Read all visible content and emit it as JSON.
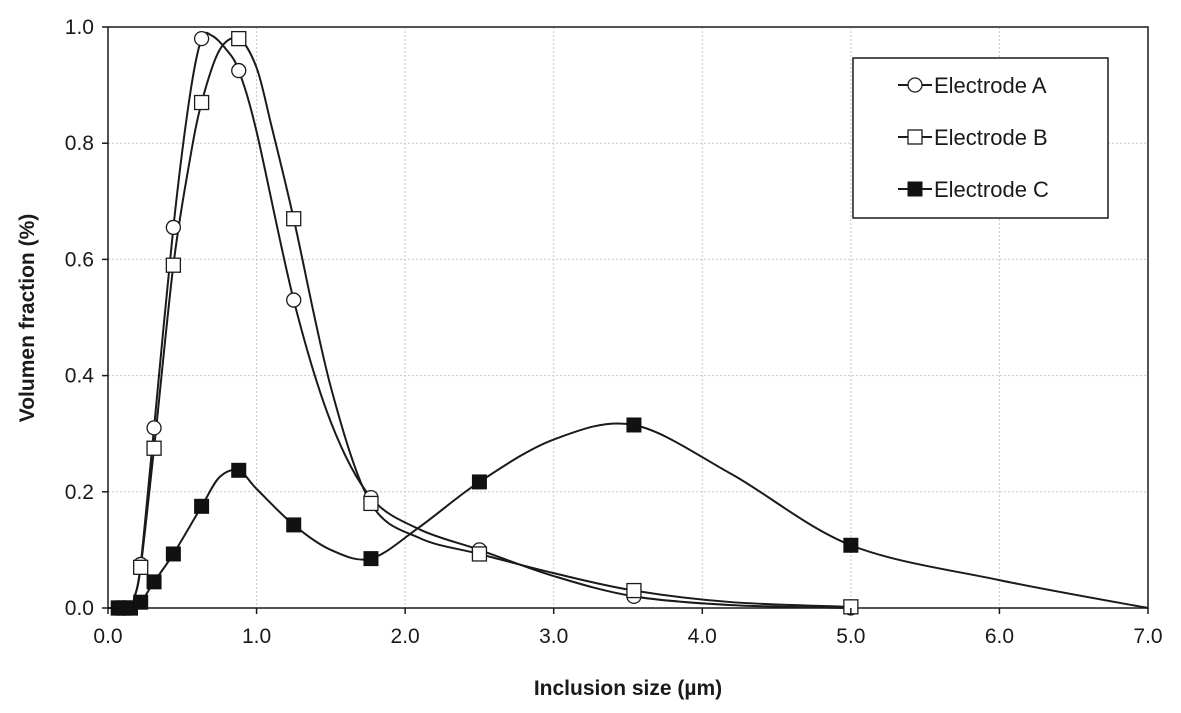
{
  "chart_data": {
    "type": "scatter",
    "xlabel": "Inclusion size (µm)",
    "ylabel": "Volumen fraction (%)",
    "xlim": [
      0,
      7
    ],
    "ylim": [
      0,
      1
    ],
    "x_ticks": [
      "0.0",
      "1.0",
      "2.0",
      "3.0",
      "4.0",
      "5.0",
      "6.0",
      "7.0"
    ],
    "y_ticks": [
      "0.0",
      "0.2",
      "0.4",
      "0.6",
      "0.8",
      "1.0"
    ],
    "grid": true,
    "legend_position": "top-right",
    "series": [
      {
        "name": "Electrode A",
        "marker": "open-circle",
        "x": [
          0.07,
          0.1,
          0.15,
          0.22,
          0.31,
          0.44,
          0.63,
          0.88,
          1.25,
          1.77,
          2.5,
          3.54,
          5.0
        ],
        "y": [
          0.0,
          0.0,
          0.0,
          0.075,
          0.31,
          0.655,
          0.98,
          0.925,
          0.53,
          0.19,
          0.1,
          0.02,
          0.0
        ],
        "curve_x": [
          0.0,
          0.07,
          0.1,
          0.15,
          0.18,
          0.22,
          0.31,
          0.44,
          0.55,
          0.63,
          0.7,
          0.8,
          0.88,
          1.0,
          1.25,
          1.5,
          1.77,
          2.1,
          2.5,
          3.0,
          3.54,
          4.2,
          5.0
        ],
        "curve_y": [
          0.0,
          0.0,
          0.0,
          0.0,
          0.02,
          0.075,
          0.31,
          0.655,
          0.88,
          0.98,
          0.985,
          0.96,
          0.925,
          0.82,
          0.53,
          0.32,
          0.19,
          0.135,
          0.1,
          0.055,
          0.02,
          0.005,
          0.0
        ]
      },
      {
        "name": "Electrode B",
        "marker": "open-square",
        "x": [
          0.07,
          0.1,
          0.15,
          0.22,
          0.31,
          0.44,
          0.63,
          0.88,
          1.25,
          1.77,
          2.5,
          3.54,
          5.0
        ],
        "y": [
          0.0,
          0.0,
          0.0,
          0.07,
          0.275,
          0.59,
          0.87,
          0.98,
          0.67,
          0.18,
          0.093,
          0.03,
          0.002
        ],
        "curve_x": [
          0.0,
          0.07,
          0.1,
          0.15,
          0.18,
          0.22,
          0.31,
          0.44,
          0.55,
          0.63,
          0.75,
          0.88,
          1.0,
          1.1,
          1.25,
          1.5,
          1.77,
          2.1,
          2.5,
          3.0,
          3.54,
          4.2,
          5.0
        ],
        "curve_y": [
          0.0,
          0.0,
          0.0,
          0.0,
          0.02,
          0.07,
          0.275,
          0.59,
          0.77,
          0.87,
          0.96,
          0.98,
          0.93,
          0.83,
          0.67,
          0.38,
          0.18,
          0.12,
          0.093,
          0.06,
          0.03,
          0.01,
          0.002
        ]
      },
      {
        "name": "Electrode C",
        "marker": "filled-square",
        "x": [
          0.07,
          0.1,
          0.15,
          0.22,
          0.31,
          0.44,
          0.63,
          0.88,
          1.25,
          1.77,
          2.5,
          3.54,
          5.0
        ],
        "y": [
          0.0,
          0.0,
          0.0,
          0.01,
          0.045,
          0.093,
          0.175,
          0.237,
          0.143,
          0.085,
          0.217,
          0.315,
          0.108
        ],
        "curve_x": [
          0.0,
          0.07,
          0.1,
          0.15,
          0.22,
          0.31,
          0.44,
          0.63,
          0.75,
          0.88,
          1.0,
          1.25,
          1.5,
          1.77,
          2.1,
          2.5,
          3.0,
          3.54,
          4.2,
          5.0,
          6.0,
          7.0
        ],
        "curve_y": [
          0.0,
          0.0,
          0.0,
          0.0,
          0.01,
          0.045,
          0.093,
          0.175,
          0.225,
          0.237,
          0.205,
          0.143,
          0.1,
          0.085,
          0.14,
          0.217,
          0.29,
          0.315,
          0.23,
          0.108,
          0.048,
          0.0
        ]
      }
    ]
  }
}
